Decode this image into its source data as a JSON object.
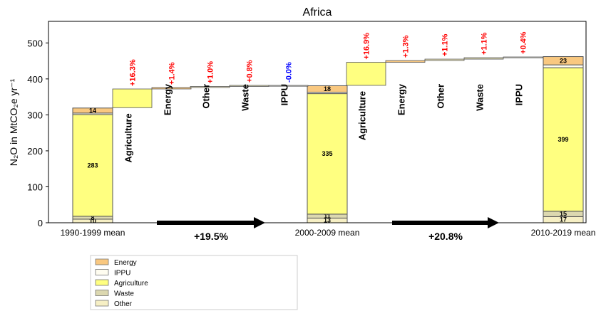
{
  "chart_data": {
    "type": "bar",
    "title": "Africa",
    "ylabel": "N₂O in MtCO₂e yr⁻¹",
    "ylim": [
      0,
      560
    ],
    "yticks": [
      0,
      100,
      200,
      300,
      400,
      500
    ],
    "colors": {
      "Energy": "#f9c880",
      "IPPU": "#fffdf0",
      "Agriculture": "#ffff80",
      "Waste": "#dcd8b0",
      "Other": "#f6efc4",
      "increase": "#ff0000",
      "decrease": "#0000ff",
      "arrow": "#000000"
    },
    "periods": [
      {
        "label": "1990-1999 mean",
        "segments": [
          {
            "name": "Other",
            "value": 10,
            "label": "10"
          },
          {
            "name": "Waste",
            "value": 8,
            "label": "8"
          },
          {
            "name": "Agriculture",
            "value": 283,
            "label": "283"
          },
          {
            "name": "IPPU",
            "value": 4,
            "label": ""
          },
          {
            "name": "Energy",
            "value": 14,
            "label": "14"
          }
        ]
      },
      {
        "label": "2000-2009 mean",
        "segments": [
          {
            "name": "Other",
            "value": 13,
            "label": "13"
          },
          {
            "name": "Waste",
            "value": 11,
            "label": "11"
          },
          {
            "name": "Agriculture",
            "value": 335,
            "label": "335"
          },
          {
            "name": "IPPU",
            "value": 4,
            "label": ""
          },
          {
            "name": "Energy",
            "value": 18,
            "label": "18"
          }
        ]
      },
      {
        "label": "2010-2019 mean",
        "segments": [
          {
            "name": "Other",
            "value": 17,
            "label": "17"
          },
          {
            "name": "Waste",
            "value": 15,
            "label": "15"
          },
          {
            "name": "Agriculture",
            "value": 399,
            "label": "399"
          },
          {
            "name": "IPPU",
            "value": 8,
            "label": ""
          },
          {
            "name": "Energy",
            "value": 23,
            "label": "23"
          }
        ]
      }
    ],
    "waterfall_steps": [
      {
        "transition": 1,
        "name": "Agriculture",
        "change": "+16.3%",
        "from": 320,
        "to": 372
      },
      {
        "transition": 1,
        "name": "Energy",
        "change": "+1.4%",
        "from": 372,
        "to": 376
      },
      {
        "transition": 1,
        "name": "Other",
        "change": "+1.0%",
        "from": 376,
        "to": 379
      },
      {
        "transition": 1,
        "name": "Waste",
        "change": "+0.8%",
        "from": 379,
        "to": 382
      },
      {
        "transition": 1,
        "name": "IPPU",
        "change": "-0.0%",
        "from": 382,
        "to": 382
      },
      {
        "transition": 2,
        "name": "Agriculture",
        "change": "+16.9%",
        "from": 382,
        "to": 446
      },
      {
        "transition": 2,
        "name": "Energy",
        "change": "+1.3%",
        "from": 446,
        "to": 451
      },
      {
        "transition": 2,
        "name": "Other",
        "change": "+1.1%",
        "from": 451,
        "to": 455
      },
      {
        "transition": 2,
        "name": "Waste",
        "change": "+1.1%",
        "from": 455,
        "to": 459
      },
      {
        "transition": 2,
        "name": "IPPU",
        "change": "+0.4%",
        "from": 459,
        "to": 461
      }
    ],
    "total_changes": [
      "+19.5%",
      "+20.8%"
    ],
    "legend": [
      "Energy",
      "IPPU",
      "Agriculture",
      "Waste",
      "Other"
    ]
  }
}
